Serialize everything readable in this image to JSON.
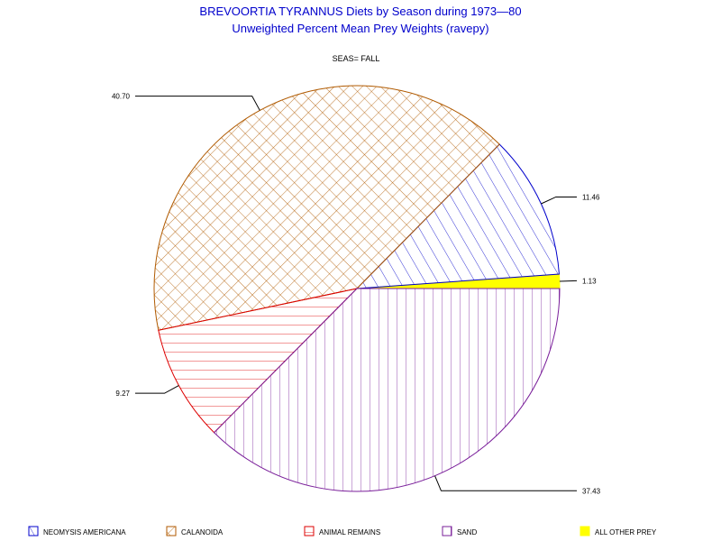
{
  "chart_data": {
    "type": "pie",
    "title": "BREVOORTIA TYRANNUS Diets by Season during 1973—80",
    "subtitle": "Unweighted Percent Mean Prey Weights (ravepy)",
    "group_label": "SEAS= FALL",
    "slices": [
      {
        "name": "ALL OTHER PREY",
        "value": 1.13,
        "label": "1.13",
        "color": "#ffff00",
        "pattern": "solid"
      },
      {
        "name": "NEOMYSIS AMERICANA",
        "value": 11.46,
        "label": "11.46",
        "color": "#0000cc",
        "pattern": "diagonal"
      },
      {
        "name": "CALANOIDA",
        "value": 40.7,
        "label": "40.70",
        "color": "#b05a00",
        "pattern": "crosshatch"
      },
      {
        "name": "ANIMAL REMAINS",
        "value": 9.27,
        "label": "9.27",
        "color": "#dd0000",
        "pattern": "horizontal"
      },
      {
        "name": "SAND",
        "value": 37.43,
        "label": "37.43",
        "color": "#7a1f9a",
        "pattern": "vertical"
      }
    ],
    "legend": [
      "NEOMYSIS AMERICANA",
      "CALANOIDA",
      "ANIMAL REMAINS",
      "SAND",
      "ALL OTHER PREY"
    ],
    "legend_position": "bottom"
  }
}
